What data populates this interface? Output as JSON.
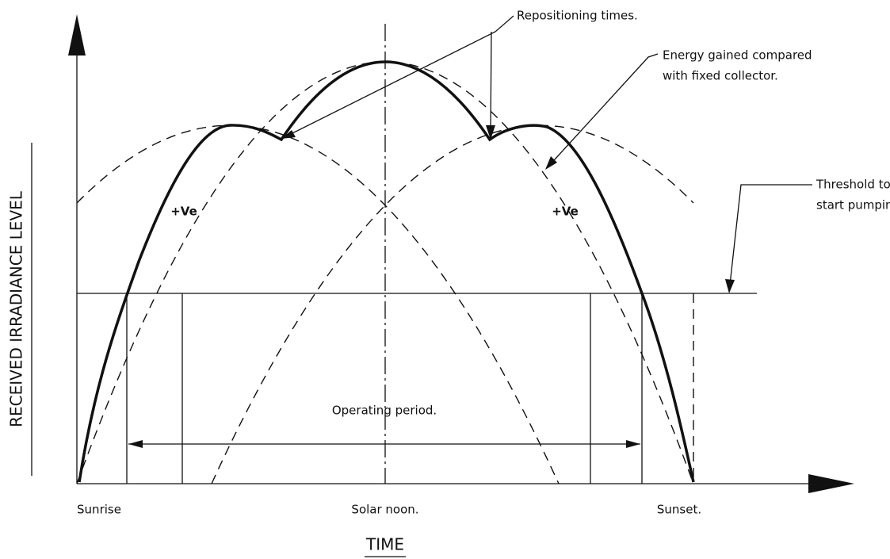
{
  "labels": {
    "repositioning": "Repositioning times.",
    "energy_1": "Energy gained compared",
    "energy_2": "with fixed collector.",
    "threshold_1": "Threshold to",
    "threshold_2": "start pumping.",
    "ve_left": "+Ve",
    "ve_right": "+Ve",
    "operating": "Operating period.",
    "sunrise": "Sunrise",
    "noon": "Solar noon.",
    "sunset": "Sunset.",
    "x_axis": "TIME",
    "y_axis": "RECEIVED IRRADIANCE LEVEL"
  }
}
